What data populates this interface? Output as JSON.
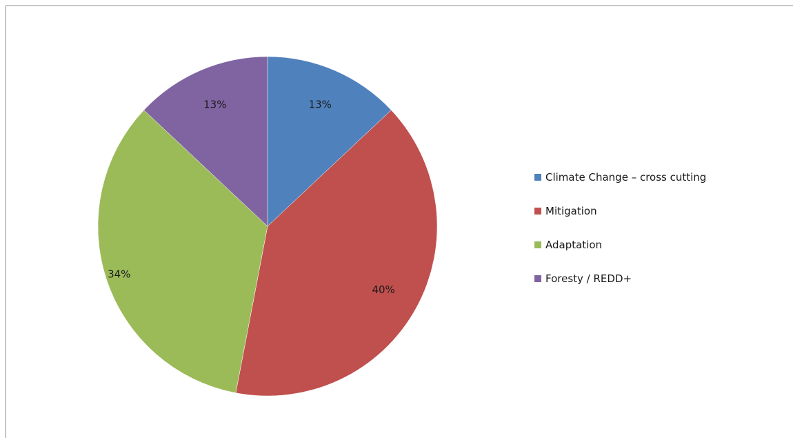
{
  "chart_data": {
    "type": "pie",
    "title": "",
    "categories": [
      "Climate  Change – cross cutting",
      "Mitigation",
      "Adaptation",
      "Foresty / REDD+"
    ],
    "values": [
      13,
      40,
      34,
      13
    ],
    "data_labels": [
      "13%",
      "40%",
      "34%",
      "13%"
    ],
    "colors": [
      "#4F81BD",
      "#C0504D",
      "#9BBB59",
      "#8064A2"
    ],
    "legend_position": "right",
    "start_angle": "12 o'clock",
    "direction": "clockwise"
  }
}
